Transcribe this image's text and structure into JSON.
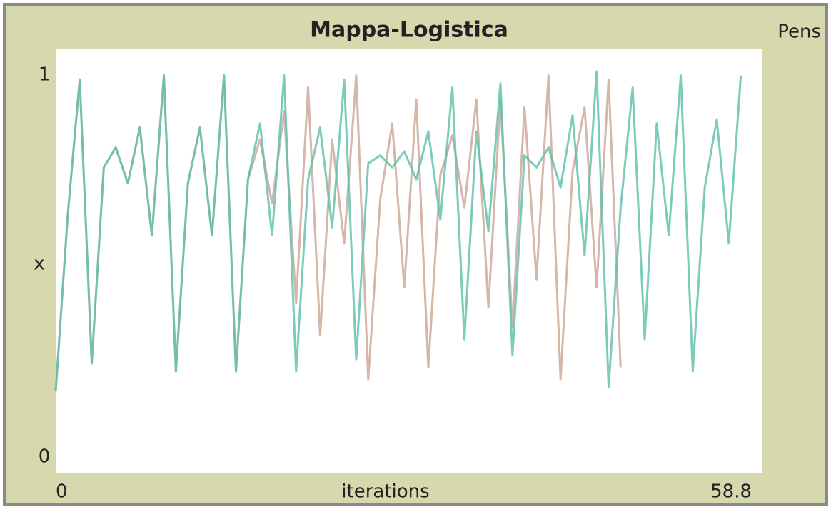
{
  "chart_data": {
    "type": "line",
    "title": "Mappa-Logistica",
    "legend_title": "Pens",
    "x_label": "iterations",
    "y_label": "x",
    "xlim": [
      0,
      58.8
    ],
    "xticks": [
      0,
      58.8
    ],
    "ylim": [
      0,
      1
    ],
    "yticks": [
      0,
      1
    ],
    "series": [
      {
        "color": "#c9a594",
        "x": [
          0,
          1,
          2,
          3,
          4,
          5,
          6,
          7,
          8,
          9,
          10,
          11,
          12,
          13,
          14,
          15,
          16,
          17,
          18,
          19,
          20,
          21,
          22,
          23,
          24,
          25,
          26,
          27,
          28,
          29,
          30,
          31,
          32,
          33,
          34,
          35,
          36,
          37,
          38,
          39,
          40,
          41,
          42,
          43,
          44,
          45,
          46,
          47
        ],
        "values": [
          0.2,
          0.64,
          0.98,
          0.27,
          0.76,
          0.81,
          0.72,
          0.86,
          0.59,
          0.99,
          0.25,
          0.72,
          0.86,
          0.59,
          0.99,
          0.25,
          0.73,
          0.83,
          0.67,
          0.9,
          0.42,
          0.96,
          0.34,
          0.83,
          0.57,
          0.99,
          0.23,
          0.68,
          0.87,
          0.46,
          0.93,
          0.26,
          0.74,
          0.84,
          0.66,
          0.93,
          0.41,
          0.93,
          0.36,
          0.91,
          0.48,
          0.99,
          0.23,
          0.75,
          0.91,
          0.46,
          0.98,
          0.26
        ]
      },
      {
        "color": "#5cbfaa",
        "x": [
          0,
          1,
          2,
          3,
          4,
          5,
          6,
          7,
          8,
          9,
          10,
          11,
          12,
          13,
          14,
          15,
          16,
          17,
          18,
          19,
          20,
          21,
          22,
          23,
          24,
          25,
          26,
          27,
          28,
          29,
          30,
          31,
          32,
          33,
          34,
          35,
          36,
          37,
          38,
          39,
          40,
          41,
          42,
          43,
          44,
          45,
          46,
          47,
          48,
          49,
          50,
          51,
          52,
          53,
          54,
          55,
          56,
          57
        ],
        "values": [
          0.2,
          0.64,
          0.98,
          0.27,
          0.76,
          0.81,
          0.72,
          0.86,
          0.59,
          0.99,
          0.25,
          0.72,
          0.86,
          0.59,
          0.99,
          0.25,
          0.73,
          0.87,
          0.59,
          0.99,
          0.25,
          0.73,
          0.86,
          0.61,
          0.98,
          0.28,
          0.77,
          0.79,
          0.76,
          0.8,
          0.73,
          0.85,
          0.63,
          0.96,
          0.33,
          0.85,
          0.6,
          0.97,
          0.29,
          0.79,
          0.76,
          0.81,
          0.71,
          0.89,
          0.54,
          1.0,
          0.21,
          0.66,
          0.96,
          0.33,
          0.87,
          0.59,
          0.99,
          0.25,
          0.71,
          0.88,
          0.57,
          0.99
        ]
      }
    ]
  }
}
